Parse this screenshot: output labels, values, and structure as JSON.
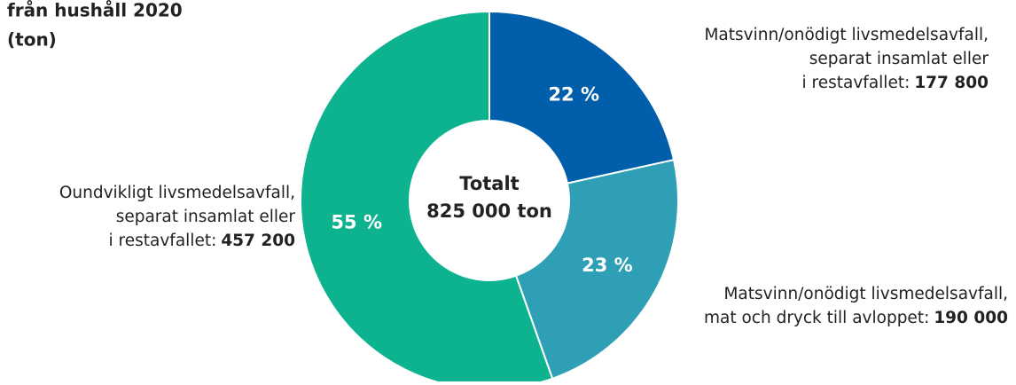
{
  "chart_data": {
    "type": "donut",
    "title_lines": [
      "från hushåll 2020",
      "(ton)"
    ],
    "categories": [
      [
        "Matsvinn/onödigt livsmedelsavfall,",
        "separat insamlat eller",
        "i restavfallet:"
      ],
      [
        "Matsvinn/onödigt livsmedelsavfall,",
        "mat och dryck till avloppet:"
      ],
      [
        "Oundvikligt livsmedelsavfall,",
        "separat insamlat eller",
        "i restavfallet:"
      ]
    ],
    "values": [
      177800,
      190000,
      457200
    ],
    "value_labels": [
      "177 800",
      "190 000",
      "457 200"
    ],
    "percents": [
      22,
      23,
      55
    ],
    "percent_labels": [
      "22 %",
      "23 %",
      "55 %"
    ],
    "colors": [
      "#005eaa",
      "#2e9fb5",
      "#0db38e"
    ],
    "center_lines": [
      "Totalt",
      "825 000 ton"
    ]
  }
}
